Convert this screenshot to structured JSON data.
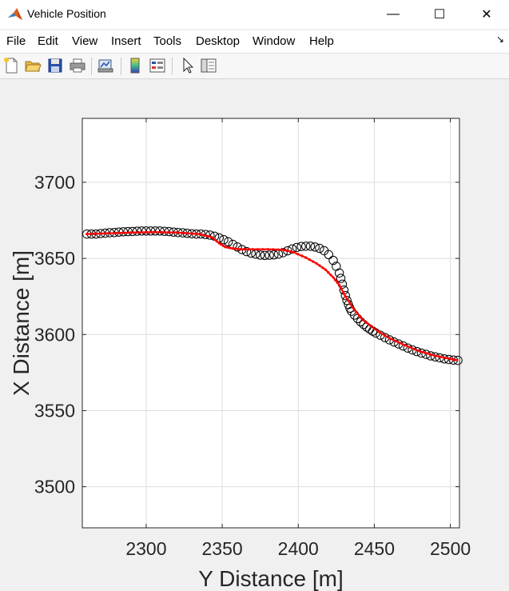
{
  "window": {
    "title": "Vehicle Position",
    "minimize_glyph": "—",
    "maximize_glyph": "☐",
    "close_glyph": "✕"
  },
  "menu": [
    "File",
    "Edit",
    "View",
    "Insert",
    "Tools",
    "Desktop",
    "Window",
    "Help"
  ],
  "toolbar": {
    "icons": [
      "new-figure-icon",
      "open-file-icon",
      "save-icon",
      "print-icon",
      "link-plot-icon",
      "insert-colorbar-icon",
      "insert-legend-icon",
      "edit-plot-arrow-icon",
      "property-inspector-icon"
    ]
  },
  "colors": {
    "track": "#ff0000",
    "markers": "#000000",
    "grid": "#dedede"
  },
  "chart_data": {
    "type": "scatter",
    "xlabel": "Y Distance [m]",
    "ylabel": "X Distance [m]",
    "xlim": [
      2258,
      2506
    ],
    "ylim": [
      3473,
      3742
    ],
    "xticks": [
      2300,
      2350,
      2400,
      2450,
      2500
    ],
    "yticks": [
      3500,
      3550,
      3600,
      3650,
      3700
    ],
    "grid": true,
    "series": [
      {
        "style": "black open circles",
        "x": [
          2261,
          2264,
          2267,
          2270,
          2273,
          2276,
          2279,
          2282,
          2285,
          2288,
          2291,
          2294,
          2297,
          2300,
          2303,
          2306,
          2309,
          2312,
          2315,
          2318,
          2321,
          2324,
          2327,
          2330,
          2333,
          2336,
          2339,
          2342,
          2345,
          2348,
          2351,
          2354,
          2357,
          2360,
          2363,
          2366,
          2369,
          2372,
          2375,
          2378,
          2381,
          2384,
          2387,
          2390,
          2393,
          2396,
          2399,
          2402,
          2405,
          2408,
          2411,
          2414,
          2417,
          2420,
          2423,
          2425,
          2427,
          2428,
          2429,
          2430,
          2431,
          2432,
          2433,
          2434,
          2435,
          2437,
          2439,
          2441,
          2443,
          2445,
          2447,
          2449,
          2451,
          2454,
          2457,
          2460,
          2463,
          2466,
          2469,
          2472,
          2475,
          2478,
          2481,
          2484,
          2487,
          2490,
          2493,
          2496,
          2499,
          2502,
          2505
        ],
        "y": [
          3666,
          3666,
          3666,
          3666.3,
          3666.6,
          3666.9,
          3667,
          3667.3,
          3667.5,
          3667.6,
          3667.7,
          3667.9,
          3668,
          3668,
          3668,
          3668,
          3668,
          3667.8,
          3667.6,
          3667.3,
          3667,
          3666.8,
          3666.5,
          3666.2,
          3666,
          3666,
          3665.7,
          3665.3,
          3664.6,
          3663.5,
          3662.3,
          3660.9,
          3659.2,
          3657.5,
          3655.8,
          3654.5,
          3653.5,
          3652.8,
          3652.2,
          3652,
          3652.1,
          3652.3,
          3652.8,
          3653.8,
          3655,
          3656.2,
          3657.2,
          3657.8,
          3658,
          3658,
          3657.5,
          3656.6,
          3655.1,
          3652.5,
          3648.7,
          3644.8,
          3640.4,
          3636.9,
          3633.1,
          3629.2,
          3625.6,
          3622.4,
          3619.7,
          3617.3,
          3615.3,
          3612.8,
          3610.5,
          3608.4,
          3606.6,
          3604.9,
          3603.5,
          3602.2,
          3601,
          3599.5,
          3598,
          3596.5,
          3595.1,
          3593.8,
          3592.5,
          3591.1,
          3589.9,
          3588.8,
          3587.8,
          3587,
          3586,
          3585.3,
          3584.7,
          3584,
          3583.6,
          3583.2,
          3583
        ]
      },
      {
        "style": "red line with dots",
        "x": [
          2261,
          2275,
          2290,
          2305,
          2320,
          2335,
          2343,
          2348,
          2352,
          2357,
          2362,
          2370,
          2380,
          2390,
          2397,
          2405,
          2412,
          2418,
          2423,
          2427,
          2431,
          2436,
          2442,
          2450,
          2460,
          2470,
          2480,
          2490,
          2500,
          2505
        ],
        "y": [
          3666,
          3666.5,
          3667,
          3667.3,
          3667,
          3666,
          3664,
          3660,
          3657.5,
          3656.5,
          3656,
          3656,
          3656,
          3655.7,
          3654,
          3650.5,
          3646.7,
          3642.5,
          3637.5,
          3632.5,
          3625,
          3617.5,
          3610,
          3603.8,
          3597.5,
          3593,
          3589,
          3586,
          3584,
          3583
        ]
      }
    ]
  }
}
